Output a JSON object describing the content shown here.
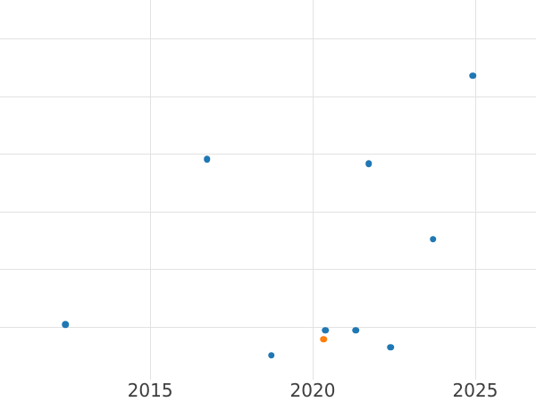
{
  "colors": {
    "background": "#ffffff",
    "gridline": "#e2e2e2",
    "tick_label": "#3d3d3d",
    "series_blue": "#1f77b4",
    "series_orange": "#ff7f0e"
  },
  "chart_data": {
    "type": "scatter",
    "x_axis": {
      "grid": true,
      "range": [
        2010.38,
        2026.87
      ],
      "ticks": [
        {
          "value": 2015,
          "label": "2015"
        },
        {
          "value": 2020,
          "label": "2020"
        },
        {
          "value": 2025,
          "label": "2025"
        }
      ]
    },
    "y_axis": {
      "grid": true,
      "tick_labels_visible": false,
      "unit": "gridline-units (no y labels visible in screenshot)",
      "range": [
        0.08,
        6.67
      ],
      "gridline_values": [
        1,
        2,
        3,
        4,
        5,
        6
      ]
    },
    "legend": {
      "visible": false
    },
    "series": [
      {
        "name": "blue-series",
        "color": "#1f77b4",
        "marker": "circle",
        "points": [
          {
            "x": 2012.39,
            "y": 1.04
          },
          {
            "x": 2016.75,
            "y": 3.91
          },
          {
            "x": 2018.72,
            "y": 0.5
          },
          {
            "x": 2020.39,
            "y": 0.94
          },
          {
            "x": 2021.33,
            "y": 0.94
          },
          {
            "x": 2021.72,
            "y": 3.83
          },
          {
            "x": 2022.4,
            "y": 0.64
          },
          {
            "x": 2023.7,
            "y": 2.52
          },
          {
            "x": 2024.93,
            "y": 5.36
          }
        ]
      },
      {
        "name": "orange-series",
        "color": "#ff7f0e",
        "marker": "circle",
        "points": [
          {
            "x": 2020.33,
            "y": 0.78
          }
        ]
      }
    ]
  }
}
